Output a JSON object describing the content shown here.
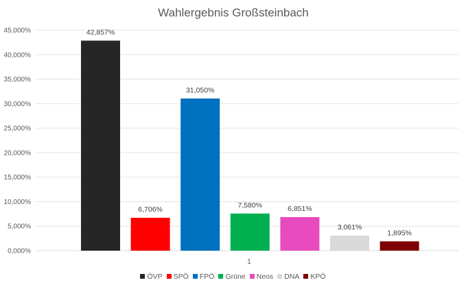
{
  "chart_data": {
    "type": "bar",
    "title": "Wahlergebnis Großsteinbach",
    "categories": [
      "1"
    ],
    "series": [
      {
        "name": "ÖVP",
        "values": [
          42.857
        ],
        "label": "42,857%",
        "color": "#262626"
      },
      {
        "name": "SPÖ",
        "values": [
          6.706
        ],
        "label": "6,706%",
        "color": "#ff0000"
      },
      {
        "name": "FPÖ",
        "values": [
          31.05
        ],
        "label": "31,050%",
        "color": "#0070c0"
      },
      {
        "name": "Grüne",
        "values": [
          7.58
        ],
        "label": "7,580%",
        "color": "#00b050"
      },
      {
        "name": "Neos",
        "values": [
          6.851
        ],
        "label": "6,851%",
        "color": "#e84bbf"
      },
      {
        "name": "DNA",
        "values": [
          3.061
        ],
        "label": "3,061%",
        "color": "#d9d9d9"
      },
      {
        "name": "KPÖ",
        "values": [
          1.895
        ],
        "label": "1,895%",
        "color": "#7f0000"
      }
    ],
    "ylim": [
      0,
      45
    ],
    "yticks": [
      {
        "value": 0,
        "label": "0,000%"
      },
      {
        "value": 5,
        "label": "5,000%"
      },
      {
        "value": 10,
        "label": "10,000%"
      },
      {
        "value": 15,
        "label": "15,000%"
      },
      {
        "value": 20,
        "label": "20,000%"
      },
      {
        "value": 25,
        "label": "25,000%"
      },
      {
        "value": 30,
        "label": "30,000%"
      },
      {
        "value": 35,
        "label": "35,000%"
      },
      {
        "value": 40,
        "label": "40,000%"
      },
      {
        "value": 45,
        "label": "45,000%"
      }
    ],
    "grid": true,
    "legend": "bottom"
  }
}
